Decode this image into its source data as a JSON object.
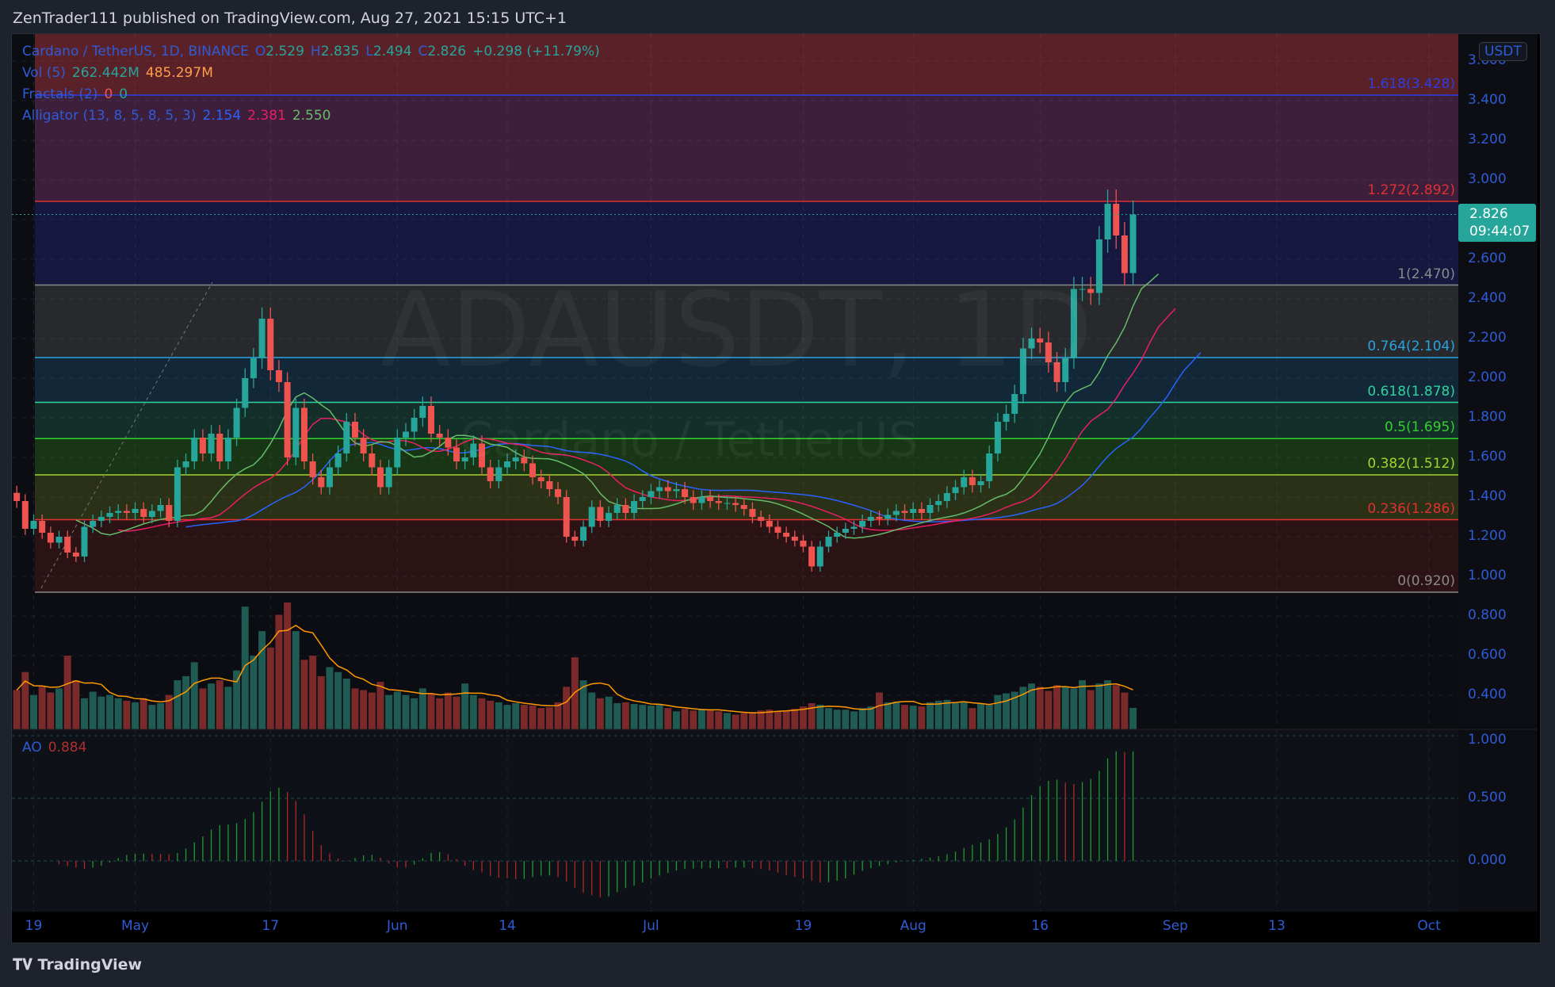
{
  "header": {
    "title": "ZenTrader111 published on TradingView.com, Aug 27, 2021 15:15 UTC+1"
  },
  "legend": {
    "symbol": "Cardano / TetherUS, 1D, BINANCE",
    "o_label": "O",
    "o": "2.529",
    "h_label": "H",
    "h": "2.835",
    "l_label": "L",
    "l": "2.494",
    "c_label": "C",
    "c": "2.826",
    "change": "+0.298 (+11.79%)",
    "vol_name": "Vol (5)",
    "vol": "262.442M",
    "vol_ma": "485.297M",
    "fractals_name": "Fractals (2)",
    "fractal_up": "0",
    "fractal_down": "0",
    "alligator_name": "Alligator (13, 8, 5, 8, 5, 3)",
    "jaw": "2.154",
    "teeth": "2.381",
    "lips": "2.550",
    "ao_name": "AO",
    "ao": "0.884"
  },
  "watermark": {
    "ticker": "ADAUSDT, 1D",
    "name": "Cardano / TetherUS"
  },
  "currency_badge": "USDT",
  "last_price": {
    "price": "2.826",
    "countdown": "09:44:07"
  },
  "brand": "TradingView",
  "colors": {
    "up": "#26a69a",
    "down": "#ef5350",
    "jaw": "#2962ff",
    "teeth": "#e91e63",
    "lips": "#66bb6a",
    "vol_ma": "#ff9800",
    "axis_text": "#2f5bd6"
  },
  "chart_data": {
    "type": "candlestick",
    "start_date": "2021-04-17",
    "close": [
      1.38,
      1.24,
      1.28,
      1.22,
      1.17,
      1.2,
      1.12,
      1.1,
      1.25,
      1.28,
      1.3,
      1.32,
      1.33,
      1.32,
      1.34,
      1.3,
      1.33,
      1.36,
      1.28,
      1.55,
      1.58,
      1.7,
      1.62,
      1.72,
      1.58,
      1.7,
      1.85,
      2.0,
      2.1,
      2.3,
      2.04,
      1.98,
      1.6,
      1.85,
      1.58,
      1.5,
      1.45,
      1.55,
      1.62,
      1.78,
      1.7,
      1.62,
      1.55,
      1.45,
      1.55,
      1.7,
      1.73,
      1.8,
      1.86,
      1.72,
      1.7,
      1.65,
      1.58,
      1.6,
      1.67,
      1.55,
      1.48,
      1.55,
      1.58,
      1.6,
      1.57,
      1.5,
      1.48,
      1.44,
      1.4,
      1.2,
      1.18,
      1.25,
      1.35,
      1.28,
      1.32,
      1.36,
      1.32,
      1.38,
      1.4,
      1.43,
      1.45,
      1.43,
      1.44,
      1.4,
      1.37,
      1.4,
      1.38,
      1.37,
      1.37,
      1.36,
      1.34,
      1.3,
      1.28,
      1.25,
      1.22,
      1.2,
      1.18,
      1.15,
      1.05,
      1.15,
      1.2,
      1.22,
      1.24,
      1.25,
      1.28,
      1.3,
      1.29,
      1.31,
      1.33,
      1.32,
      1.34,
      1.32,
      1.36,
      1.38,
      1.42,
      1.45,
      1.5,
      1.46,
      1.48,
      1.62,
      1.78,
      1.82,
      1.92,
      2.15,
      2.2,
      2.18,
      2.08,
      1.98,
      2.1,
      2.45,
      2.45,
      2.43,
      2.7,
      2.88,
      2.72,
      2.53,
      2.826
    ],
    "volume_millions": [
      480,
      700,
      420,
      520,
      450,
      500,
      900,
      600,
      380,
      460,
      400,
      420,
      380,
      350,
      330,
      380,
      300,
      320,
      420,
      600,
      650,
      820,
      500,
      560,
      600,
      520,
      720,
      1500,
      900,
      1200,
      1000,
      1400,
      1550,
      1200,
      850,
      900,
      650,
      760,
      700,
      620,
      500,
      480,
      450,
      580,
      420,
      460,
      420,
      380,
      500,
      430,
      380,
      450,
      400,
      560,
      420,
      380,
      350,
      330,
      300,
      320,
      300,
      290,
      260,
      270,
      330,
      520,
      880,
      600,
      450,
      380,
      400,
      320,
      330,
      310,
      300,
      290,
      300,
      260,
      220,
      250,
      230,
      250,
      240,
      220,
      200,
      180,
      200,
      210,
      230,
      240,
      220,
      230,
      250,
      280,
      320,
      300,
      260,
      240,
      240,
      220,
      260,
      280,
      450,
      330,
      340,
      300,
      290,
      280,
      330,
      350,
      360,
      320,
      330,
      260,
      310,
      300,
      420,
      440,
      460,
      520,
      560,
      520,
      470,
      540,
      520,
      500,
      600,
      480,
      560,
      600,
      540,
      450,
      262.442
    ],
    "price_ticks": [
      "3.600",
      "3.400",
      "3.200",
      "3.000",
      "2.600",
      "2.400",
      "2.200",
      "2.000",
      "1.800",
      "1.600",
      "1.400",
      "1.200",
      "1.000",
      "0.800",
      "0.600",
      "0.400"
    ],
    "ao_ticks": [
      "1.000",
      "0.500",
      "0.000"
    ],
    "time_ticks": [
      {
        "label": "19",
        "date": "2021-04-19"
      },
      {
        "label": "May",
        "date": "2021-05-01"
      },
      {
        "label": "17",
        "date": "2021-05-17"
      },
      {
        "label": "Jun",
        "date": "2021-06-01"
      },
      {
        "label": "14",
        "date": "2021-06-14"
      },
      {
        "label": "Jul",
        "date": "2021-07-01"
      },
      {
        "label": "19",
        "date": "2021-07-19"
      },
      {
        "label": "Aug",
        "date": "2021-08-01"
      },
      {
        "label": "16",
        "date": "2021-08-16"
      },
      {
        "label": "Sep",
        "date": "2021-09-01"
      },
      {
        "label": "13",
        "date": "2021-09-13"
      },
      {
        "label": "Oct",
        "date": "2021-10-01"
      }
    ],
    "fib_levels": [
      {
        "label": "1.618(3.428)",
        "price": 3.428,
        "color": "#2a3fe0",
        "fill": "#3d1f3c"
      },
      {
        "label": "1.272(2.892)",
        "price": 2.892,
        "color": "#e03030",
        "fill": "#16183f"
      },
      {
        "label": "1(2.470)",
        "price": 2.47,
        "color": "#8a8a8a",
        "fill": "#27292d"
      },
      {
        "label": "0.764(2.104)",
        "price": 2.104,
        "color": "#29a3e0",
        "fill": "#122838"
      },
      {
        "label": "0.618(1.878)",
        "price": 1.878,
        "color": "#2ed1a0",
        "fill": "#142f2a"
      },
      {
        "label": "0.5(1.695)",
        "price": 1.695,
        "color": "#35d030",
        "fill": "#183616"
      },
      {
        "label": "0.382(1.512)",
        "price": 1.512,
        "color": "#a8d030",
        "fill": "#2b3117"
      },
      {
        "label": "0.236(1.286)",
        "price": 1.286,
        "color": "#e03030",
        "fill": "#2b1215"
      },
      {
        "label": "0(0.920)",
        "price": 0.92,
        "color": "#8a8a8a",
        "fill": null
      }
    ],
    "fib_top_fill": "#5a2129"
  }
}
